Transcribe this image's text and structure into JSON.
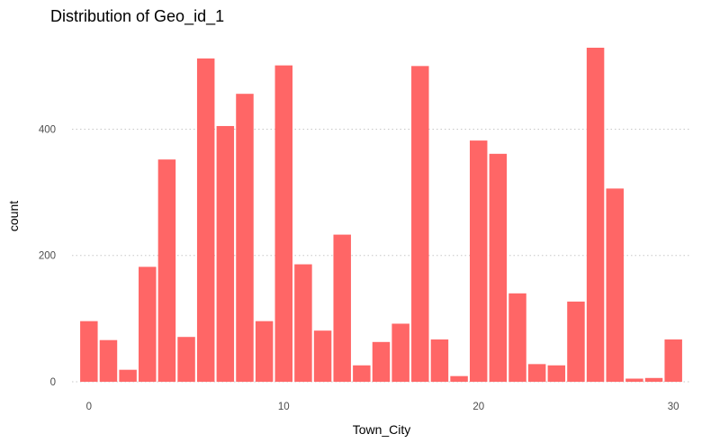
{
  "chart_data": {
    "type": "bar",
    "title": "Distribution of Geo_id_1",
    "xlabel": "Town_City",
    "ylabel": "count",
    "x": [
      0,
      1,
      2,
      3,
      4,
      5,
      6,
      7,
      8,
      9,
      10,
      11,
      12,
      13,
      14,
      15,
      16,
      17,
      18,
      19,
      20,
      21,
      22,
      23,
      24,
      25,
      26,
      27,
      28,
      29,
      30
    ],
    "values": [
      96,
      66,
      19,
      182,
      352,
      71,
      512,
      405,
      456,
      96,
      501,
      186,
      81,
      233,
      26,
      63,
      92,
      500,
      67,
      9,
      382,
      361,
      140,
      28,
      26,
      127,
      529,
      306,
      5,
      6,
      67
    ],
    "xlim": [
      -0.5,
      30.5
    ],
    "ylim": [
      0,
      529
    ],
    "x_ticks": [
      0,
      10,
      20,
      30
    ],
    "y_ticks": [
      0,
      200,
      400
    ],
    "grid": "horizontal dotted",
    "legend": "none",
    "colors": {
      "bar": "#ff6666"
    }
  }
}
